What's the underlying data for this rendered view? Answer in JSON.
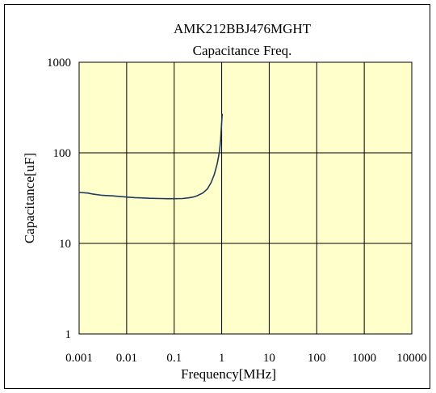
{
  "chart_data": {
    "type": "line",
    "title": "AMK212BBJ476MGHT",
    "subtitle": "Capacitance Freq.",
    "xlabel": "Frequency[MHz]",
    "ylabel": "Capacitance[uF]",
    "xscale": "log",
    "yscale": "log",
    "xlim": [
      0.001,
      10000
    ],
    "ylim": [
      1,
      1000
    ],
    "x_ticks": [
      0.001,
      0.01,
      0.1,
      1,
      10,
      100,
      1000,
      10000
    ],
    "x_tick_labels": [
      "0.001",
      "0.01",
      "0.1",
      "1",
      "10",
      "100",
      "1000",
      "10000"
    ],
    "y_ticks": [
      1,
      10,
      100,
      1000
    ],
    "y_tick_labels": [
      "1",
      "10",
      "100",
      "1000"
    ],
    "grid": true,
    "plot_background": "#ffffcc",
    "line_color": "#1f3a5f",
    "series": [
      {
        "x": [
          0.001,
          0.0015,
          0.002,
          0.003,
          0.005,
          0.007,
          0.01,
          0.015,
          0.02,
          0.03,
          0.05,
          0.07,
          0.1,
          0.15,
          0.2,
          0.25,
          0.3,
          0.4,
          0.5,
          0.6,
          0.7,
          0.8,
          0.85,
          0.9,
          0.95,
          1.0,
          1.03
        ],
        "y": [
          36.5,
          36,
          35,
          34,
          33.5,
          33,
          32.5,
          32,
          31.8,
          31.5,
          31.3,
          31.2,
          31.2,
          31.3,
          31.8,
          32.5,
          33.5,
          36,
          40,
          47,
          58,
          75,
          88,
          105,
          140,
          220,
          270
        ]
      }
    ]
  }
}
